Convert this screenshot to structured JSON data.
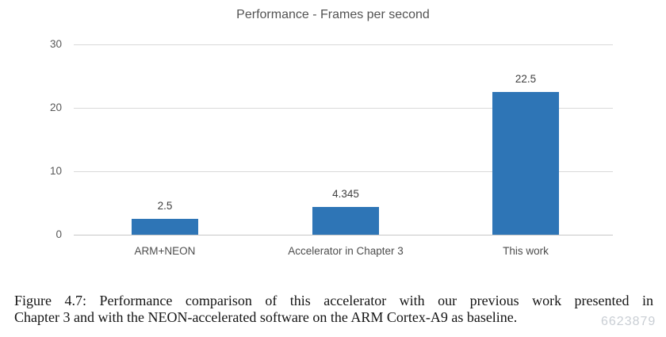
{
  "chart_data": {
    "type": "bar",
    "title": "Performance - Frames per second",
    "categories": [
      "ARM+NEON",
      "Accelerator in Chapter 3",
      "This work"
    ],
    "values": [
      2.5,
      4.345,
      22.5
    ],
    "value_labels": [
      "2.5",
      "4.345",
      "22.5"
    ],
    "yticks": [
      "0",
      "10",
      "20",
      "30"
    ],
    "ylim": [
      0,
      30
    ],
    "xlabel": "",
    "ylabel": "",
    "grid": "horizontal",
    "legend": "none",
    "bar_color": "#2E75B6"
  },
  "caption": {
    "lines": [
      "Figure 4.7: Performance comparison of this accelerator with our previous work presented in",
      "Chapter 3 and with the NEON-accelerated software on the ARM Cortex-A9 as baseline."
    ]
  },
  "watermark": {
    "text": "6623879",
    "color": "#C9CED4"
  },
  "colors": {
    "bar": "#2E75B6",
    "gridline": "#D9D9D9",
    "axis_line": "#C8C8C8",
    "tick_label": "#595959",
    "title": "#535353",
    "value_label": "#3F3F3F",
    "caption_text": "#141414"
  }
}
